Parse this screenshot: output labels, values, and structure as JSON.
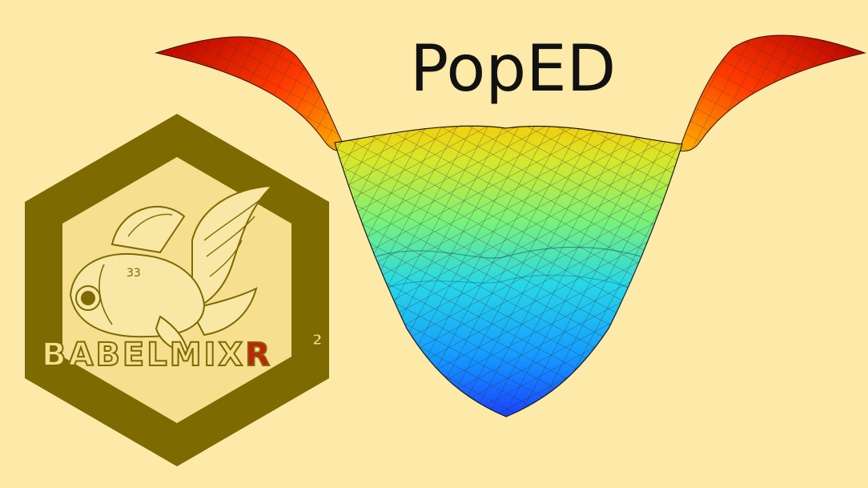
{
  "title": "PopED",
  "logo": {
    "wordmark": "BABELMIX",
    "wordmark_accent": "R",
    "superscript": "2",
    "icon": "goldfish-icon",
    "gold_color": "#7d6a00",
    "gold_light": "#f6df8e",
    "accent_color": "#c81d12"
  },
  "surface": {
    "icon": "3d-surface-plot-icon",
    "colormap": [
      "#1f3cff",
      "#00b7ff",
      "#39f3c8",
      "#d9ef1a",
      "#ffbf00",
      "#ff5a00",
      "#b80000"
    ]
  },
  "colors": {
    "background": "#fde9a8",
    "title_text": "#111111"
  }
}
